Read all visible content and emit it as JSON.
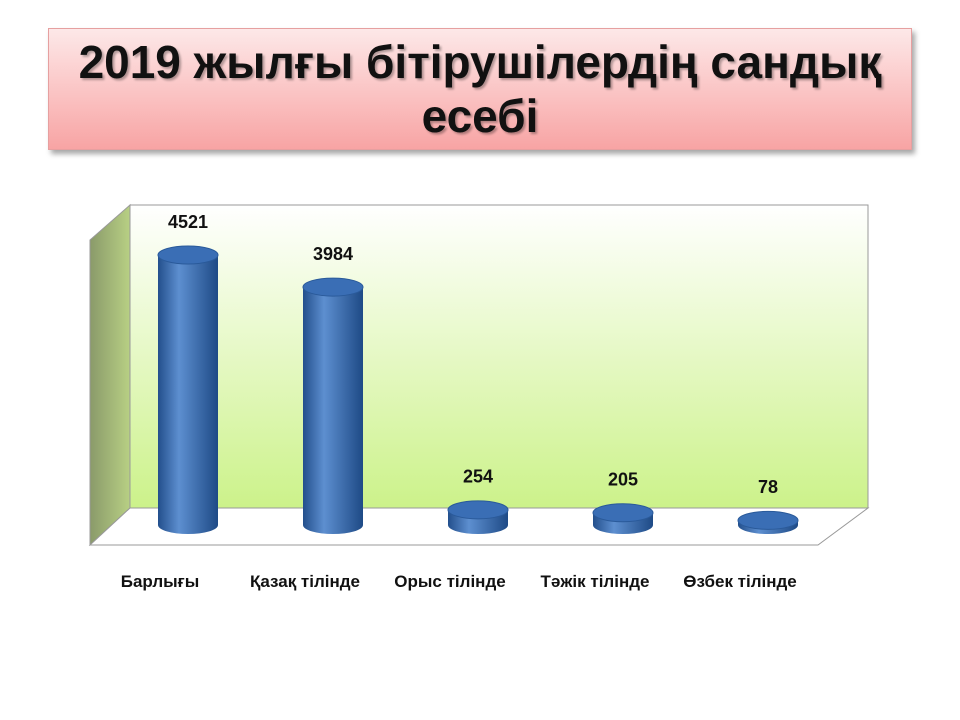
{
  "chart_data": {
    "type": "bar",
    "title": "2019 жылғы бітірушілердің сандық есебі",
    "categories": [
      "Барлығы",
      "Қазақ тілінде",
      "Орыс тілінде",
      "Тәжік тілінде",
      "Өзбек тілінде"
    ],
    "values": [
      4521,
      3984,
      254,
      205,
      78
    ],
    "color": "#3a6eb5"
  }
}
